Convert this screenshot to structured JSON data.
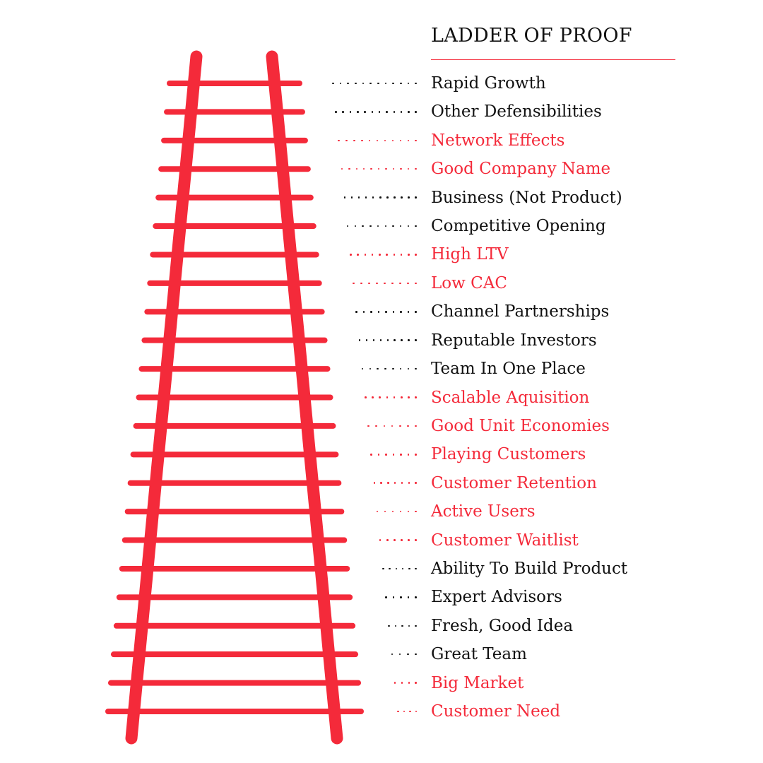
{
  "title": "LADDER OF PROOF",
  "colors": {
    "accent": "#f42a3a",
    "text": "#111111"
  },
  "steps": [
    {
      "label": "Rapid Growth",
      "highlight": false
    },
    {
      "label": "Other Defensibilities",
      "highlight": false
    },
    {
      "label": "Network Effects",
      "highlight": true
    },
    {
      "label": "Good Company Name",
      "highlight": true
    },
    {
      "label": "Business (Not Product)",
      "highlight": false
    },
    {
      "label": "Competitive Opening",
      "highlight": false
    },
    {
      "label": "High LTV",
      "highlight": true
    },
    {
      "label": "Low CAC",
      "highlight": true
    },
    {
      "label": "Channel Partnerships",
      "highlight": false
    },
    {
      "label": "Reputable Investors",
      "highlight": false
    },
    {
      "label": "Team In One Place",
      "highlight": false
    },
    {
      "label": "Scalable Aquisition",
      "highlight": true
    },
    {
      "label": "Good Unit Economies",
      "highlight": true
    },
    {
      "label": "Playing Customers",
      "highlight": true
    },
    {
      "label": "Customer Retention",
      "highlight": true
    },
    {
      "label": "Active Users",
      "highlight": true
    },
    {
      "label": "Customer Waitlist",
      "highlight": true
    },
    {
      "label": "Ability To Build Product",
      "highlight": false
    },
    {
      "label": "Expert Advisors",
      "highlight": false
    },
    {
      "label": "Fresh, Good Idea",
      "highlight": false
    },
    {
      "label": "Great Team",
      "highlight": false
    },
    {
      "label": "Big Market",
      "highlight": true
    },
    {
      "label": "Customer Need",
      "highlight": true
    }
  ]
}
